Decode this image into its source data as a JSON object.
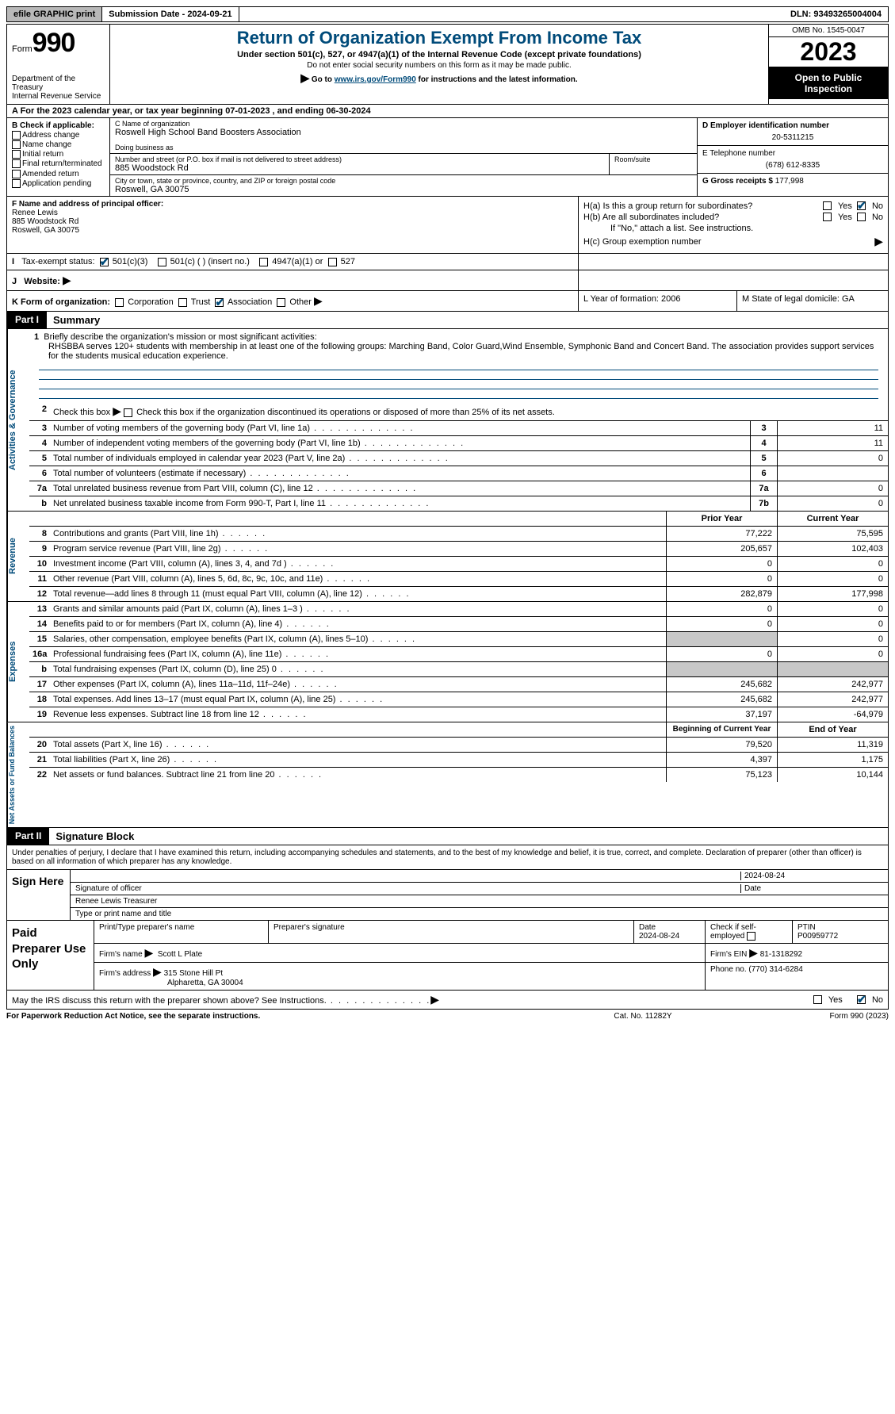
{
  "topbar": {
    "efile_btn": "efile GRAPHIC print",
    "submission_label": "Submission Date - 2024-09-21",
    "dln": "DLN: 93493265004004"
  },
  "header": {
    "form_small": "Form",
    "form_num": "990",
    "title": "Return of Organization Exempt From Income Tax",
    "subtitle": "Under section 501(c), 527, or 4947(a)(1) of the Internal Revenue Code (except private foundations)",
    "note1": "Do not enter social security numbers on this form as it may be made public.",
    "note2_pre": "Go to ",
    "note2_link": "www.irs.gov/Form990",
    "note2_post": " for instructions and the latest information.",
    "dept": "Department of the Treasury\nInternal Revenue Service",
    "omb": "OMB No. 1545-0047",
    "year": "2023",
    "inspect": "Open to Public Inspection"
  },
  "row_a": "A For the 2023 calendar year, or tax year beginning 07-01-2023    , and ending 06-30-2024",
  "col_b": {
    "title": "B Check if applicable:",
    "items": [
      "Address change",
      "Name change",
      "Initial return",
      "Final return/terminated",
      "Amended return",
      "Application pending"
    ]
  },
  "col_c": {
    "name_label": "C Name of organization",
    "name_val": "Roswell High School Band Boosters Association",
    "dba_label": "Doing business as",
    "addr_label": "Number and street (or P.O. box if mail is not delivered to street address)",
    "room_label": "Room/suite",
    "addr_val": "885 Woodstock Rd",
    "city_label": "City or town, state or province, country, and ZIP or foreign postal code",
    "city_val": "Roswell, GA  30075"
  },
  "col_d": {
    "ein_label": "D Employer identification number",
    "ein_val": "20-5311215",
    "phone_label": "E Telephone number",
    "phone_val": "(678) 612-8335",
    "gross_label": "G Gross receipts $",
    "gross_val": "177,998"
  },
  "row_f": {
    "label": "F Name and address of principal officer:",
    "name": "Renee Lewis",
    "addr1": "885 Woodstock Rd",
    "addr2": "Roswell, GA  30075"
  },
  "row_h": {
    "ha": "H(a)  Is this a group return for subordinates?",
    "hb": "H(b)  Are all subordinates included?",
    "hb_note": "If \"No,\" attach a list. See instructions.",
    "hc": "H(c)  Group exemption number",
    "yes": "Yes",
    "no": "No"
  },
  "row_i": {
    "label": "Tax-exempt status:",
    "opt1": "501(c)(3)",
    "opt2": "501(c) (  ) (insert no.)",
    "opt3": "4947(a)(1) or",
    "opt4": "527"
  },
  "row_j": {
    "label": "Website:",
    "arrow": "▶"
  },
  "row_k": {
    "k_label": "K Form of organization:",
    "opts": [
      "Corporation",
      "Trust",
      "Association",
      "Other"
    ],
    "l": "L Year of formation: 2006",
    "m": "M State of legal domicile: GA"
  },
  "part1": {
    "tag": "Part I",
    "title": "Summary"
  },
  "gov": {
    "vlabel": "Activities & Governance",
    "l1_label": "Briefly describe the organization's mission or most significant activities:",
    "l1_text": "RHSBBA serves 120+ students with membership in at least one of the following groups: Marching Band, Color Guard,Wind Ensemble, Symphonic Band and Concert Band. The association provides support services for the students musical education experience.",
    "l2": "Check this box   if the organization discontinued its operations or disposed of more than 25% of its net assets.",
    "rows": [
      {
        "n": "3",
        "t": "Number of voting members of the governing body (Part VI, line 1a)",
        "box": "3",
        "v": "11"
      },
      {
        "n": "4",
        "t": "Number of independent voting members of the governing body (Part VI, line 1b)",
        "box": "4",
        "v": "11"
      },
      {
        "n": "5",
        "t": "Total number of individuals employed in calendar year 2023 (Part V, line 2a)",
        "box": "5",
        "v": "0"
      },
      {
        "n": "6",
        "t": "Total number of volunteers (estimate if necessary)",
        "box": "6",
        "v": ""
      },
      {
        "n": "7a",
        "t": "Total unrelated business revenue from Part VIII, column (C), line 12",
        "box": "7a",
        "v": "0"
      },
      {
        "n": "b",
        "t": "Net unrelated business taxable income from Form 990-T, Part I, line 11",
        "box": "7b",
        "v": "0"
      }
    ]
  },
  "rev": {
    "vlabel": "Revenue",
    "hdr_prior": "Prior Year",
    "hdr_curr": "Current Year",
    "rows": [
      {
        "n": "8",
        "t": "Contributions and grants (Part VIII, line 1h)",
        "p": "77,222",
        "c": "75,595"
      },
      {
        "n": "9",
        "t": "Program service revenue (Part VIII, line 2g)",
        "p": "205,657",
        "c": "102,403"
      },
      {
        "n": "10",
        "t": "Investment income (Part VIII, column (A), lines 3, 4, and 7d )",
        "p": "0",
        "c": "0"
      },
      {
        "n": "11",
        "t": "Other revenue (Part VIII, column (A), lines 5, 6d, 8c, 9c, 10c, and 11e)",
        "p": "0",
        "c": "0"
      },
      {
        "n": "12",
        "t": "Total revenue—add lines 8 through 11 (must equal Part VIII, column (A), line 12)",
        "p": "282,879",
        "c": "177,998"
      }
    ]
  },
  "exp": {
    "vlabel": "Expenses",
    "rows": [
      {
        "n": "13",
        "t": "Grants and similar amounts paid (Part IX, column (A), lines 1–3 )",
        "p": "0",
        "c": "0"
      },
      {
        "n": "14",
        "t": "Benefits paid to or for members (Part IX, column (A), line 4)",
        "p": "0",
        "c": "0"
      },
      {
        "n": "15",
        "t": "Salaries, other compensation, employee benefits (Part IX, column (A), lines 5–10)",
        "p": "",
        "c": "0",
        "pshade": true
      },
      {
        "n": "16a",
        "t": "Professional fundraising fees (Part IX, column (A), line 11e)",
        "p": "0",
        "c": "0"
      },
      {
        "n": "b",
        "t": "Total fundraising expenses (Part IX, column (D), line 25) 0",
        "p": "",
        "c": "",
        "pshade": true,
        "cshade": true
      },
      {
        "n": "17",
        "t": "Other expenses (Part IX, column (A), lines 11a–11d, 11f–24e)",
        "p": "245,682",
        "c": "242,977"
      },
      {
        "n": "18",
        "t": "Total expenses. Add lines 13–17 (must equal Part IX, column (A), line 25)",
        "p": "245,682",
        "c": "242,977"
      },
      {
        "n": "19",
        "t": "Revenue less expenses. Subtract line 18 from line 12",
        "p": "37,197",
        "c": "-64,979"
      }
    ]
  },
  "net": {
    "vlabel": "Net Assets or Fund Balances",
    "hdr_prior": "Beginning of Current Year",
    "hdr_curr": "End of Year",
    "rows": [
      {
        "n": "20",
        "t": "Total assets (Part X, line 16)",
        "p": "79,520",
        "c": "11,319"
      },
      {
        "n": "21",
        "t": "Total liabilities (Part X, line 26)",
        "p": "4,397",
        "c": "1,175"
      },
      {
        "n": "22",
        "t": "Net assets or fund balances. Subtract line 21 from line 20",
        "p": "75,123",
        "c": "10,144"
      }
    ]
  },
  "part2": {
    "tag": "Part II",
    "title": "Signature Block"
  },
  "sig": {
    "decl": "Under penalties of perjury, I declare that I have examined this return, including accompanying schedules and statements, and to the best of my knowledge and belief, it is true, correct, and complete. Declaration of preparer (other than officer) is based on all information of which preparer has any knowledge.",
    "sign_here": "Sign Here",
    "sig_of_officer": "Signature of officer",
    "date": "2024-08-24",
    "date_label": "Date",
    "officer_name": "Renee Lewis  Treasurer",
    "type_label": "Type or print name and title"
  },
  "paid": {
    "label": "Paid Preparer Use Only",
    "h1": "Print/Type preparer's name",
    "h2": "Preparer's signature",
    "h3": "Date",
    "h3v": "2024-08-24",
    "h4": "Check        if self-employed",
    "h5": "PTIN",
    "h5v": "P00959772",
    "firm_label": "Firm's name",
    "firm_arrow": "▶",
    "firm": "Scott L Plate",
    "ein_label": "Firm's EIN",
    "ein_arrow": "▶",
    "ein": "81-1318292",
    "addr_label": "Firm's address",
    "addr_arrow": "▶",
    "addr1": "315 Stone Hill Pt",
    "addr2": "Alpharetta, GA  30004",
    "phone_label": "Phone no.",
    "phone": "(770) 314-6284"
  },
  "discuss": {
    "text": "May the IRS discuss this return with the preparer shown above? See Instructions.",
    "yes": "Yes",
    "no": "No"
  },
  "footer": {
    "left": "For Paperwork Reduction Act Notice, see the separate instructions.",
    "mid": "Cat. No. 11282Y",
    "right": "Form 990 (2023)"
  }
}
